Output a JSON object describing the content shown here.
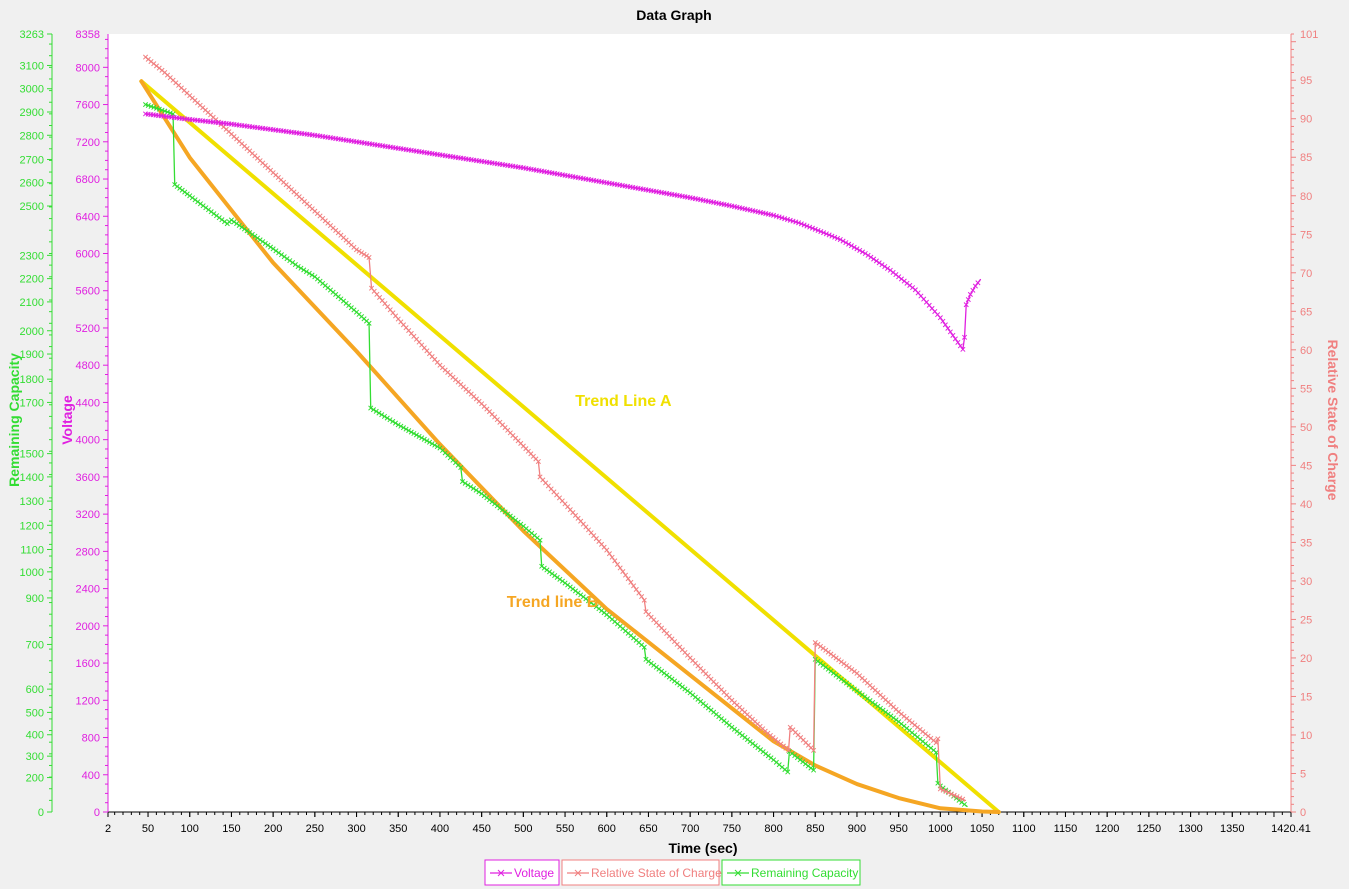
{
  "chart_data": {
    "type": "line",
    "title": "Data Graph",
    "xlabel": "Time (sec)",
    "x_ticks": [
      2,
      50,
      100,
      150,
      200,
      250,
      300,
      350,
      400,
      450,
      500,
      550,
      600,
      650,
      700,
      750,
      800,
      850,
      900,
      950,
      1000,
      1050,
      1100,
      1150,
      1200,
      1250,
      1300,
      1350,
      1420.41
    ],
    "xlim": [
      2,
      1420.41
    ],
    "axes": {
      "voltage": {
        "label": "Voltage",
        "color": "#e020e0",
        "ylim": [
          0,
          8358
        ],
        "ticks": [
          0,
          400,
          800,
          1200,
          1600,
          2000,
          2400,
          2800,
          3200,
          3600,
          4000,
          4400,
          4800,
          5200,
          5600,
          6000,
          6400,
          6800,
          7200,
          7600,
          8000,
          8358
        ]
      },
      "remaining_capacity": {
        "label": "Remaining Capacity",
        "color": "#33dd33",
        "ylim": [
          0,
          3263
        ],
        "tick_labels": [
          "0",
          "200",
          "300",
          "400",
          "500",
          "600",
          "700",
          "900",
          "1000",
          "1100",
          "1200",
          "1300",
          "1400",
          "1500",
          "1700",
          "1800",
          "1900",
          "2000",
          "2100",
          "2200",
          "2300",
          "2500",
          "2600",
          "2700",
          "2800",
          "2900",
          "3000",
          "3100",
          "3263"
        ],
        "tick_positions": [
          0,
          370,
          600,
          830,
          1070,
          1320,
          1800,
          2300,
          2580,
          2820,
          3080,
          3340,
          3600,
          3850,
          4400,
          4650,
          4920,
          5170,
          5480,
          5730,
          5980,
          6510,
          6760,
          7010,
          7270,
          7520,
          7770,
          8020,
          8358
        ]
      },
      "rsoc": {
        "label": "Relative State of Charge",
        "color": "#f08080",
        "ylim": [
          0,
          101
        ],
        "ticks": [
          0,
          5,
          10,
          15,
          20,
          25,
          30,
          35,
          40,
          45,
          50,
          55,
          60,
          65,
          70,
          75,
          80,
          85,
          90,
          95,
          101
        ]
      }
    },
    "series": [
      {
        "name": "Voltage",
        "axis": "voltage",
        "color": "#e020e0",
        "points": [
          [
            47,
            7500
          ],
          [
            100,
            7440
          ],
          [
            150,
            7390
          ],
          [
            200,
            7330
          ],
          [
            250,
            7270
          ],
          [
            300,
            7200
          ],
          [
            350,
            7130
          ],
          [
            400,
            7060
          ],
          [
            450,
            6990
          ],
          [
            500,
            6920
          ],
          [
            550,
            6840
          ],
          [
            600,
            6760
          ],
          [
            650,
            6680
          ],
          [
            700,
            6600
          ],
          [
            750,
            6510
          ],
          [
            800,
            6410
          ],
          [
            830,
            6330
          ],
          [
            850,
            6260
          ],
          [
            880,
            6150
          ],
          [
            910,
            6000
          ],
          [
            940,
            5820
          ],
          [
            970,
            5610
          ],
          [
            1000,
            5310
          ],
          [
            1015,
            5120
          ],
          [
            1027,
            4970
          ],
          [
            1029,
            5100
          ],
          [
            1031,
            5450
          ],
          [
            1036,
            5560
          ],
          [
            1042,
            5650
          ],
          [
            1048,
            5720
          ]
        ]
      },
      {
        "name": "Relative State of Charge",
        "axis": "rsoc",
        "color": "#f08080",
        "points": [
          [
            47,
            98
          ],
          [
            70,
            96
          ],
          [
            100,
            93
          ],
          [
            150,
            88
          ],
          [
            200,
            83
          ],
          [
            250,
            78
          ],
          [
            300,
            73
          ],
          [
            315,
            72
          ],
          [
            318,
            68
          ],
          [
            350,
            64
          ],
          [
            400,
            58
          ],
          [
            450,
            53
          ],
          [
            500,
            47.5
          ],
          [
            518,
            45.5
          ],
          [
            520,
            43.5
          ],
          [
            550,
            40
          ],
          [
            600,
            34
          ],
          [
            645,
            27.5
          ],
          [
            647,
            26
          ],
          [
            700,
            20
          ],
          [
            750,
            14.5
          ],
          [
            790,
            10.5
          ],
          [
            818,
            8
          ],
          [
            820,
            11
          ],
          [
            848,
            8
          ],
          [
            850,
            22
          ],
          [
            900,
            18
          ],
          [
            950,
            13
          ],
          [
            995,
            9
          ],
          [
            997,
            9.5
          ],
          [
            1000,
            3
          ],
          [
            1030,
            1.5
          ]
        ]
      },
      {
        "name": "Remaining Capacity",
        "axis": "voltage",
        "color": "#33dd33",
        "points": [
          [
            47,
            7600
          ],
          [
            80,
            7500
          ],
          [
            82,
            6740
          ],
          [
            100,
            6620
          ],
          [
            145,
            6320
          ],
          [
            150,
            6360
          ],
          [
            200,
            6050
          ],
          [
            230,
            5860
          ],
          [
            250,
            5750
          ],
          [
            300,
            5370
          ],
          [
            315,
            5250
          ],
          [
            317,
            4340
          ],
          [
            350,
            4160
          ],
          [
            400,
            3910
          ],
          [
            425,
            3700
          ],
          [
            427,
            3550
          ],
          [
            450,
            3420
          ],
          [
            500,
            3070
          ],
          [
            520,
            2920
          ],
          [
            522,
            2640
          ],
          [
            550,
            2460
          ],
          [
            600,
            2120
          ],
          [
            645,
            1770
          ],
          [
            647,
            1640
          ],
          [
            700,
            1280
          ],
          [
            750,
            910
          ],
          [
            800,
            560
          ],
          [
            817,
            430
          ],
          [
            819,
            650
          ],
          [
            848,
            450
          ],
          [
            850,
            1640
          ],
          [
            900,
            1300
          ],
          [
            950,
            970
          ],
          [
            995,
            640
          ],
          [
            997,
            310
          ],
          [
            1000,
            280
          ],
          [
            1032,
            60
          ]
        ]
      },
      {
        "name": "Trend Line A",
        "axis": "voltage",
        "color": "#f0e000",
        "points": [
          [
            42,
            7850
          ],
          [
            1070,
            0
          ]
        ]
      },
      {
        "name": "Trend line B",
        "axis": "voltage",
        "color": "#f5a623",
        "points": [
          [
            42,
            7850
          ],
          [
            100,
            7030
          ],
          [
            200,
            5900
          ],
          [
            300,
            4950
          ],
          [
            400,
            3950
          ],
          [
            500,
            3020
          ],
          [
            600,
            2180
          ],
          [
            700,
            1470
          ],
          [
            800,
            760
          ],
          [
            850,
            500
          ],
          [
            900,
            300
          ],
          [
            950,
            150
          ],
          [
            1000,
            40
          ],
          [
            1050,
            5
          ],
          [
            1070,
            0
          ]
        ]
      }
    ],
    "annotations": [
      {
        "text": "Trend Line A",
        "x": 620,
        "y_voltage": 4360,
        "color": "#f0e000"
      },
      {
        "text": "Trend line B",
        "x": 535,
        "y_voltage": 2200,
        "color": "#f5a623"
      }
    ],
    "legend": {
      "placement": "bottom-center",
      "items": [
        "Voltage",
        "Relative State of Charge",
        "Remaining Capacity"
      ]
    }
  }
}
